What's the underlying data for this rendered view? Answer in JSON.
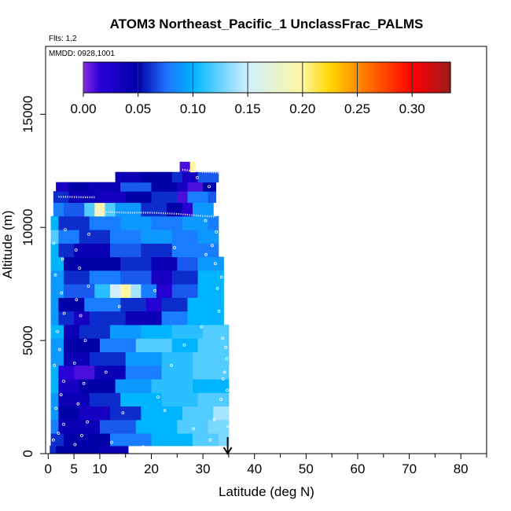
{
  "chart_data": {
    "type": "heatmap",
    "title": "ATOM3 Northeast_Pacific_1 UnclassFrac_PALMS",
    "note_flights": "Flts: 1,2",
    "note_dates": "MMDD: 0928,1001",
    "xlabel": "Latitude (deg N)",
    "ylabel": "Altitude (m)",
    "xlim": [
      -0.5,
      85
    ],
    "ylim": [
      0,
      18000
    ],
    "x_ticks": [
      0,
      5,
      10,
      20,
      30,
      40,
      50,
      60,
      70,
      80
    ],
    "x_minor_ticks": [
      15,
      25,
      35,
      45,
      55,
      65,
      75,
      85
    ],
    "y_ticks": [
      0,
      5000,
      10000,
      15000
    ],
    "colorbar": {
      "range": [
        0,
        0.335
      ],
      "ticks": [
        0.0,
        0.05,
        0.1,
        0.15,
        0.2,
        0.25,
        0.3
      ],
      "tick_labels": [
        "0.00",
        "0.05",
        "0.10",
        "0.15",
        "0.20",
        "0.25",
        "0.30"
      ],
      "colors": [
        {
          "v": 0.0,
          "c": "#8a2be2"
        },
        {
          "v": 0.015,
          "c": "#2a00d8"
        },
        {
          "v": 0.05,
          "c": "#0000a8"
        },
        {
          "v": 0.075,
          "c": "#1f6fff"
        },
        {
          "v": 0.1,
          "c": "#00b4ff"
        },
        {
          "v": 0.15,
          "c": "#d0f0ff"
        },
        {
          "v": 0.2,
          "c": "#fff6a0"
        },
        {
          "v": 0.225,
          "c": "#ffd700"
        },
        {
          "v": 0.25,
          "c": "#ff8c00"
        },
        {
          "v": 0.3,
          "c": "#ff0000"
        },
        {
          "v": 0.335,
          "c": "#9b1b1b"
        }
      ]
    },
    "arrow_latitude": 34.8,
    "bands": [
      {
        "y0": 0,
        "y1": 350,
        "cells": [
          [
            0.3,
            1.5,
            0.06
          ],
          [
            1.5,
            10,
            0.05
          ],
          [
            10,
            15.5,
            0.04
          ]
        ]
      },
      {
        "y0": 350,
        "y1": 900,
        "cells": [
          [
            0.5,
            3,
            0.06
          ],
          [
            3,
            12,
            0.05
          ],
          [
            12,
            20,
            0.08
          ],
          [
            20,
            28,
            0.1
          ],
          [
            28,
            33,
            0.12
          ],
          [
            33,
            35,
            0.13
          ]
        ]
      },
      {
        "y0": 900,
        "y1": 1500,
        "cells": [
          [
            0.5,
            2,
            0.08
          ],
          [
            2,
            10,
            0.04
          ],
          [
            10,
            17,
            0.07
          ],
          [
            17,
            25,
            0.1
          ],
          [
            25,
            31,
            0.12
          ],
          [
            31,
            35,
            0.13
          ]
        ]
      },
      {
        "y0": 1500,
        "y1": 2100,
        "cells": [
          [
            0.5,
            2,
            0.09
          ],
          [
            2,
            6,
            0.05
          ],
          [
            6,
            12,
            0.03
          ],
          [
            12,
            18,
            0.06
          ],
          [
            18,
            26,
            0.1
          ],
          [
            26,
            32,
            0.12
          ],
          [
            32,
            35,
            0.14
          ]
        ]
      },
      {
        "y0": 2100,
        "y1": 2700,
        "cells": [
          [
            0.5,
            2,
            0.09
          ],
          [
            2,
            8,
            0.04
          ],
          [
            8,
            14,
            0.06
          ],
          [
            14,
            22,
            0.1
          ],
          [
            22,
            29,
            0.11
          ],
          [
            29,
            35,
            0.12
          ]
        ]
      },
      {
        "y0": 2700,
        "y1": 3300,
        "cells": [
          [
            0.5,
            2,
            0.1
          ],
          [
            2,
            6,
            0.03
          ],
          [
            6,
            13,
            0.05
          ],
          [
            13,
            20,
            0.09
          ],
          [
            20,
            28,
            0.11
          ],
          [
            28,
            35,
            0.1
          ]
        ]
      },
      {
        "y0": 3300,
        "y1": 3900,
        "cells": [
          [
            0.5,
            2,
            0.1
          ],
          [
            2,
            5,
            0.015
          ],
          [
            5,
            9,
            0.01
          ],
          [
            9,
            15,
            0.04
          ],
          [
            15,
            22,
            0.08
          ],
          [
            22,
            28,
            0.11
          ],
          [
            28,
            35,
            0.12
          ]
        ]
      },
      {
        "y0": 3900,
        "y1": 4500,
        "cells": [
          [
            0.5,
            3,
            0.09
          ],
          [
            3,
            8,
            0.04
          ],
          [
            8,
            15,
            0.06
          ],
          [
            15,
            22,
            0.09
          ],
          [
            22,
            28,
            0.11
          ],
          [
            28,
            35,
            0.12
          ]
        ]
      },
      {
        "y0": 4500,
        "y1": 5100,
        "cells": [
          [
            0.5,
            3,
            0.09
          ],
          [
            3,
            10,
            0.05
          ],
          [
            10,
            17,
            0.08
          ],
          [
            17,
            24,
            0.12
          ],
          [
            24,
            29,
            0.1
          ],
          [
            29,
            35,
            0.12
          ]
        ]
      },
      {
        "y0": 5100,
        "y1": 5700,
        "cells": [
          [
            0.5,
            3,
            0.1
          ],
          [
            3,
            6,
            0.04
          ],
          [
            6,
            12,
            0.06
          ],
          [
            12,
            18,
            0.09
          ],
          [
            18,
            24,
            0.1
          ],
          [
            24,
            30,
            0.11
          ],
          [
            30,
            35,
            0.12
          ]
        ]
      },
      {
        "y0": 5700,
        "y1": 6300,
        "cells": [
          [
            0.5,
            2,
            0.09
          ],
          [
            2,
            5,
            0.06
          ],
          [
            5,
            8,
            0.03
          ],
          [
            8,
            15,
            0.06
          ],
          [
            15,
            22,
            0.04
          ],
          [
            22,
            27,
            0.08
          ],
          [
            27,
            34,
            0.1
          ]
        ]
      },
      {
        "y0": 6300,
        "y1": 6900,
        "cells": [
          [
            0.5,
            2,
            0.09
          ],
          [
            2,
            7,
            0.05
          ],
          [
            7,
            14,
            0.08
          ],
          [
            14,
            19,
            0.06
          ],
          [
            19,
            22,
            0.02
          ],
          [
            22,
            27,
            0.06
          ],
          [
            27,
            34,
            0.1
          ]
        ]
      },
      {
        "y0": 6900,
        "y1": 7500,
        "cells": [
          [
            0.5,
            3,
            0.09
          ],
          [
            3,
            9,
            0.07
          ],
          [
            9,
            12,
            0.11
          ],
          [
            12,
            14,
            0.15
          ],
          [
            14,
            16,
            0.2
          ],
          [
            16,
            18,
            0.14
          ],
          [
            18,
            21,
            0.08
          ],
          [
            21,
            24,
            0.02
          ],
          [
            24,
            29,
            0.07
          ],
          [
            29,
            34,
            0.1
          ]
        ]
      },
      {
        "y0": 7500,
        "y1": 8100,
        "cells": [
          [
            0.5,
            3,
            0.09
          ],
          [
            3,
            8,
            0.06
          ],
          [
            8,
            14,
            0.08
          ],
          [
            14,
            20,
            0.07
          ],
          [
            20,
            24,
            0.03
          ],
          [
            24,
            29,
            0.06
          ],
          [
            29,
            34,
            0.1
          ]
        ]
      },
      {
        "y0": 8100,
        "y1": 8700,
        "cells": [
          [
            0.5,
            3,
            0.1
          ],
          [
            3,
            8,
            0.05
          ],
          [
            8,
            14,
            0.05
          ],
          [
            14,
            20,
            0.06
          ],
          [
            20,
            25,
            0.04
          ],
          [
            25,
            29,
            0.07
          ],
          [
            29,
            34,
            0.09
          ]
        ]
      },
      {
        "y0": 8700,
        "y1": 9300,
        "cells": [
          [
            0.5,
            2,
            0.1
          ],
          [
            2,
            5,
            0.06
          ],
          [
            5,
            12,
            0.04
          ],
          [
            12,
            18,
            0.07
          ],
          [
            18,
            24,
            0.06
          ],
          [
            24,
            29,
            0.08
          ],
          [
            29,
            33,
            0.08
          ]
        ]
      },
      {
        "y0": 9300,
        "y1": 9900,
        "cells": [
          [
            0.5,
            2,
            0.12
          ],
          [
            2,
            6,
            0.08
          ],
          [
            6,
            12,
            0.06
          ],
          [
            12,
            18,
            0.08
          ],
          [
            18,
            24,
            0.09
          ],
          [
            24,
            29,
            0.08
          ],
          [
            29,
            33,
            0.09
          ]
        ]
      },
      {
        "y0": 9900,
        "y1": 10500,
        "cells": [
          [
            0.5,
            2,
            0.1
          ],
          [
            2,
            8,
            0.06
          ],
          [
            8,
            14,
            0.08
          ],
          [
            14,
            20,
            0.09
          ],
          [
            20,
            26,
            0.08
          ],
          [
            26,
            31,
            0.09
          ],
          [
            31,
            33,
            0.08
          ]
        ]
      },
      {
        "y0": 10500,
        "y1": 11100,
        "cells": [
          [
            1,
            3,
            0.08
          ],
          [
            3,
            7,
            0.07
          ],
          [
            7,
            9,
            0.12
          ],
          [
            9,
            11,
            0.19
          ],
          [
            11,
            13,
            0.12
          ],
          [
            13,
            18,
            0.09
          ],
          [
            18,
            23,
            0.06
          ],
          [
            23,
            26,
            0.05
          ],
          [
            26,
            28,
            0.02
          ],
          [
            28,
            32,
            0.09
          ]
        ]
      },
      {
        "y0": 11100,
        "y1": 11600,
        "cells": [
          [
            1,
            4,
            0.06
          ],
          [
            4,
            10,
            0.04
          ],
          [
            10,
            15,
            0.03
          ],
          [
            15,
            20,
            0.05
          ],
          [
            20,
            25,
            0.06
          ],
          [
            25,
            27,
            0.01
          ],
          [
            27,
            31,
            0.08
          ],
          [
            31,
            32.5,
            0.07
          ]
        ]
      },
      {
        "y0": 11600,
        "y1": 12000,
        "cells": [
          [
            1.5,
            4,
            0.03
          ],
          [
            4,
            8,
            0.05
          ],
          [
            8,
            14,
            0.04
          ],
          [
            14,
            20,
            0.07
          ],
          [
            20,
            25,
            0.05
          ],
          [
            25,
            27,
            0.03
          ],
          [
            27,
            30,
            0.01
          ],
          [
            30,
            32.5,
            0.05
          ]
        ]
      },
      {
        "y0": 12000,
        "y1": 12450,
        "cells": [
          [
            13,
            18,
            0.04
          ],
          [
            18,
            24,
            0.05
          ],
          [
            24,
            26,
            0.06
          ],
          [
            26,
            29,
            0.03
          ],
          [
            29,
            33,
            0.07
          ]
        ]
      },
      {
        "y0": 12450,
        "y1": 12900,
        "cells": [
          [
            25.5,
            27.5,
            0.01
          ],
          [
            27.5,
            28.5,
            0.2
          ]
        ]
      }
    ],
    "flight_tracks": [
      {
        "points": [
          [
            9,
            10700
          ],
          [
            15,
            10650
          ],
          [
            20,
            10650
          ],
          [
            25,
            10600
          ],
          [
            29,
            10520
          ],
          [
            32.5,
            10470
          ]
        ]
      },
      {
        "points": [
          [
            2,
            11350
          ],
          [
            4,
            11350
          ],
          [
            7,
            11330
          ],
          [
            9,
            11330
          ]
        ]
      },
      {
        "points": [
          [
            26,
            12550
          ],
          [
            30,
            12450
          ],
          [
            33,
            12420
          ]
        ]
      }
    ],
    "samples": [
      [
        1,
        600
      ],
      [
        2,
        900
      ],
      [
        3,
        1300
      ],
      [
        1.5,
        2000
      ],
      [
        2.5,
        2600
      ],
      [
        3,
        3200
      ],
      [
        1.2,
        3900
      ],
      [
        2.2,
        4600
      ],
      [
        1.8,
        5400
      ],
      [
        3.1,
        6200
      ],
      [
        2.6,
        7100
      ],
      [
        1.4,
        7900
      ],
      [
        2.8,
        8600
      ],
      [
        1.1,
        9300
      ],
      [
        3.3,
        9900
      ],
      [
        5.2,
        400
      ],
      [
        6.5,
        800
      ],
      [
        7.6,
        1400
      ],
      [
        5.8,
        2200
      ],
      [
        6.9,
        3100
      ],
      [
        5.1,
        4000
      ],
      [
        7.2,
        5000
      ],
      [
        6.3,
        6100
      ],
      [
        5.5,
        6800
      ],
      [
        7.8,
        7400
      ],
      [
        6.1,
        8200
      ],
      [
        5.4,
        9000
      ],
      [
        7.9,
        9700
      ],
      [
        12.3,
        500
      ],
      [
        14.5,
        1800
      ],
      [
        11.2,
        3600
      ],
      [
        13.8,
        6500
      ],
      [
        18.4,
        300
      ],
      [
        22.6,
        1900
      ],
      [
        21.3,
        2500
      ],
      [
        23.9,
        3900
      ],
      [
        20.7,
        7200
      ],
      [
        24.5,
        9100
      ],
      [
        26.4,
        4800
      ],
      [
        28.2,
        1100
      ],
      [
        29.7,
        5600
      ],
      [
        31.4,
        600
      ],
      [
        32.2,
        1500
      ],
      [
        33.5,
        2400
      ],
      [
        34.2,
        3600
      ],
      [
        34.6,
        4200
      ],
      [
        33.8,
        5100
      ],
      [
        34.4,
        4700
      ],
      [
        33.1,
        6300
      ],
      [
        32.8,
        7300
      ],
      [
        33.6,
        7800
      ],
      [
        32.4,
        8400
      ],
      [
        31.8,
        9200
      ],
      [
        32.6,
        9800
      ],
      [
        30.5,
        10300
      ],
      [
        31.2,
        11800
      ],
      [
        28.9,
        12200
      ],
      [
        34.9,
        1200
      ],
      [
        34.7,
        2800
      ],
      [
        33.9,
        3300
      ],
      [
        30.6,
        8800
      ]
    ]
  }
}
